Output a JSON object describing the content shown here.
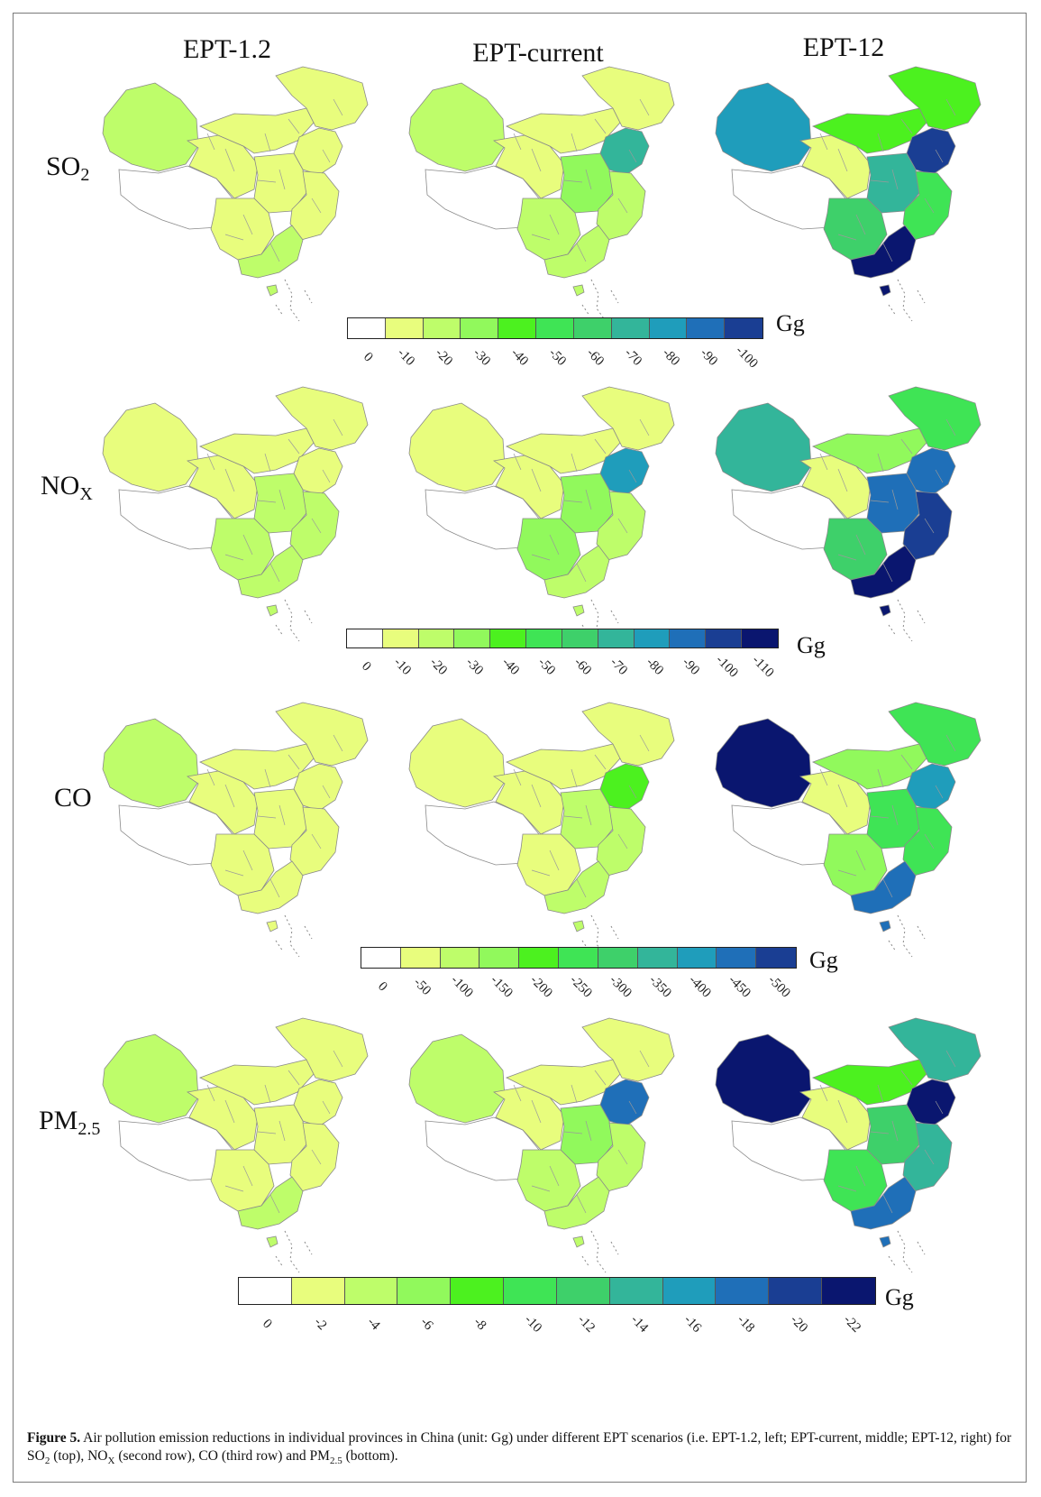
{
  "columns": [
    "EPT-1.2",
    "EPT-current",
    "EPT-12"
  ],
  "rows": [
    {
      "label_main": "SO",
      "label_sub": "2"
    },
    {
      "label_main": "NO",
      "label_sub": "X"
    },
    {
      "label_main": "CO",
      "label_sub": ""
    },
    {
      "label_main": "PM",
      "label_sub": "2.5"
    }
  ],
  "palette": [
    "#ffffff",
    "#e8fd7d",
    "#befd6a",
    "#91f95c",
    "#4cf11f",
    "#3fe455",
    "#3ed06a",
    "#33b59a",
    "#1f9dbb",
    "#1f6fb8",
    "#1a3e93",
    "#0a166f"
  ],
  "legends": [
    {
      "unit": "Gg",
      "ticks": [
        "0",
        "-10",
        "-20",
        "-30",
        "-40",
        "-50",
        "-60",
        "-70",
        "-80",
        "-90",
        "-100"
      ]
    },
    {
      "unit": "Gg",
      "ticks": [
        "0",
        "-10",
        "-20",
        "-30",
        "-40",
        "-50",
        "-60",
        "-70",
        "-80",
        "-90",
        "-100",
        "-110"
      ]
    },
    {
      "unit": "Gg",
      "ticks": [
        "0",
        "-50",
        "-100",
        "-150",
        "-200",
        "-250",
        "-300",
        "-350",
        "-400",
        "-450",
        "-500"
      ]
    },
    {
      "unit": "Gg",
      "ticks": [
        "0",
        "-2",
        "-4",
        "-6",
        "-8",
        "-10",
        "-12",
        "-14",
        "-16",
        "-18",
        "-20",
        "-22"
      ]
    }
  ],
  "map_classes": [
    [
      {
        "west": 2,
        "mid": 1,
        "north": 1,
        "ne": 1,
        "east": 1,
        "south": 2,
        "sw": 1,
        "tibet": 0,
        "nc": 1,
        "cent": 1
      },
      {
        "west": 2,
        "mid": 1,
        "north": 1,
        "ne": 1,
        "east": 2,
        "south": 2,
        "sw": 2,
        "tibet": 0,
        "nc": 7,
        "cent": 3
      },
      {
        "west": 8,
        "mid": 1,
        "north": 4,
        "ne": 4,
        "east": 5,
        "south": 11,
        "sw": 6,
        "tibet": 0,
        "nc": 10,
        "cent": 7
      }
    ],
    [
      {
        "west": 1,
        "mid": 1,
        "north": 1,
        "ne": 1,
        "east": 2,
        "south": 2,
        "sw": 2,
        "tibet": 0,
        "nc": 1,
        "cent": 2
      },
      {
        "west": 1,
        "mid": 1,
        "north": 1,
        "ne": 1,
        "east": 2,
        "south": 2,
        "sw": 3,
        "tibet": 0,
        "nc": 8,
        "cent": 3
      },
      {
        "west": 7,
        "mid": 1,
        "north": 3,
        "ne": 5,
        "east": 10,
        "south": 11,
        "sw": 6,
        "tibet": 0,
        "nc": 9,
        "cent": 9
      }
    ],
    [
      {
        "west": 2,
        "mid": 1,
        "north": 1,
        "ne": 1,
        "east": 1,
        "south": 1,
        "sw": 1,
        "tibet": 0,
        "nc": 1,
        "cent": 1
      },
      {
        "west": 1,
        "mid": 1,
        "north": 1,
        "ne": 1,
        "east": 2,
        "south": 2,
        "sw": 1,
        "tibet": 0,
        "nc": 4,
        "cent": 2
      },
      {
        "west": 11,
        "mid": 1,
        "north": 3,
        "ne": 5,
        "east": 5,
        "south": 9,
        "sw": 3,
        "tibet": 0,
        "nc": 8,
        "cent": 5
      }
    ],
    [
      {
        "west": 2,
        "mid": 1,
        "north": 1,
        "ne": 1,
        "east": 1,
        "south": 2,
        "sw": 1,
        "tibet": 0,
        "nc": 1,
        "cent": 1
      },
      {
        "west": 2,
        "mid": 1,
        "north": 1,
        "ne": 1,
        "east": 2,
        "south": 2,
        "sw": 2,
        "tibet": 0,
        "nc": 9,
        "cent": 3
      },
      {
        "west": 11,
        "mid": 1,
        "north": 4,
        "ne": 7,
        "east": 7,
        "south": 9,
        "sw": 5,
        "tibet": 0,
        "nc": 11,
        "cent": 6
      }
    ]
  ],
  "caption": {
    "figure_label": "Figure 5.",
    "text_1": " Air pollution emission reductions in individual provinces in China (unit: Gg) under different EPT scenarios (i.e. EPT-1.2, left; EPT-current, middle; EPT-12, right) for SO",
    "sub_1": "2",
    "text_2": " (top), NO",
    "sub_2": "X",
    "text_3": " (second row), CO (third row) and PM",
    "sub_3": "2.5",
    "text_4": " (bottom)."
  }
}
